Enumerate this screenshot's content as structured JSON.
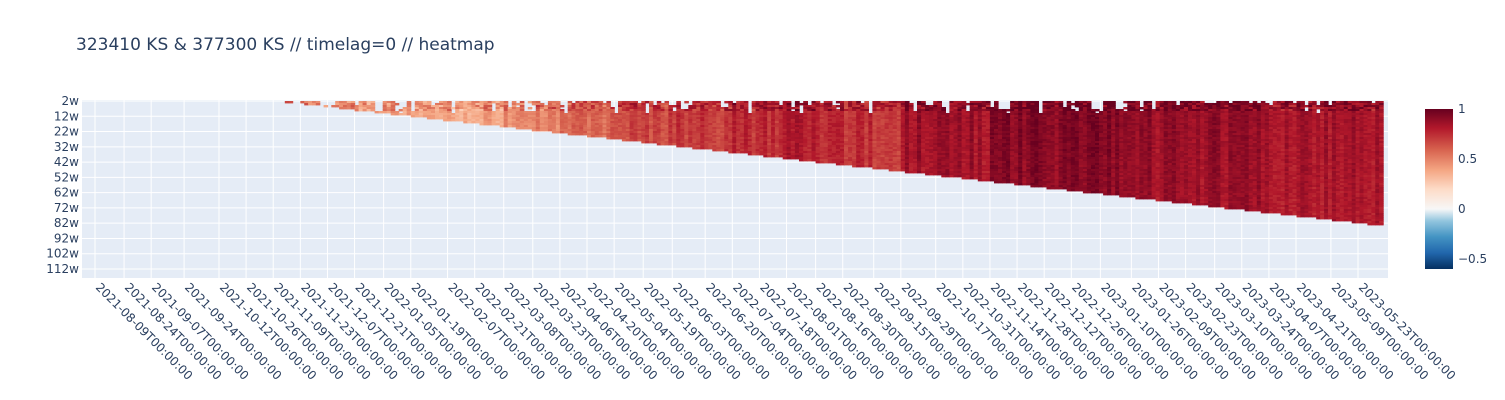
{
  "chart_data": {
    "type": "heatmap",
    "title": "323410 KS & 377300 KS // timelag=0 // heatmap",
    "xlabel": "",
    "ylabel": "",
    "x_tick_labels": [
      "2021-08-09T00:00:00",
      "2021-08-24T00:00:00",
      "2021-09-07T00:00:00",
      "2021-09-24T00:00:00",
      "2021-10-12T00:00:00",
      "2021-10-26T00:00:00",
      "2021-11-09T00:00:00",
      "2021-11-23T00:00:00",
      "2021-12-07T00:00:00",
      "2021-12-21T00:00:00",
      "2022-01-05T00:00:00",
      "2022-01-19T00:00:00",
      "2022-02-07T00:00:00",
      "2022-02-21T00:00:00",
      "2022-03-08T00:00:00",
      "2022-03-23T00:00:00",
      "2022-04-06T00:00:00",
      "2022-04-20T00:00:00",
      "2022-05-04T00:00:00",
      "2022-05-19T00:00:00",
      "2022-06-03T00:00:00",
      "2022-06-20T00:00:00",
      "2022-07-04T00:00:00",
      "2022-07-18T00:00:00",
      "2022-08-01T00:00:00",
      "2022-08-16T00:00:00",
      "2022-08-30T00:00:00",
      "2022-09-15T00:00:00",
      "2022-09-29T00:00:00",
      "2022-10-17T00:00:00",
      "2022-10-31T00:00:00",
      "2022-11-14T00:00:00",
      "2022-11-28T00:00:00",
      "2022-12-12T00:00:00",
      "2022-12-26T00:00:00",
      "2023-01-10T00:00:00",
      "2023-01-26T00:00:00",
      "2023-02-09T00:00:00",
      "2023-02-23T00:00:00",
      "2023-03-10T00:00:00",
      "2023-03-24T00:00:00",
      "2023-04-07T00:00:00",
      "2023-04-21T00:00:00",
      "2023-05-09T00:00:00",
      "2023-05-23T00:00:00"
    ],
    "y_tick_labels": [
      "2w",
      "12w",
      "22w",
      "32w",
      "42w",
      "52w",
      "62w",
      "72w",
      "82w",
      "92w",
      "102w",
      "112w"
    ],
    "y_range_weeks": [
      2,
      120
    ],
    "colorscale": "RdBu reversed",
    "colorbar": {
      "min": -0.6,
      "max": 1,
      "ticks": [
        1,
        0.5,
        0,
        -0.5
      ]
    },
    "background_color": "#e5ecf6",
    "grid": true,
    "column_blocks": [
      {
        "x_start": "2021-11-15T00:00:00",
        "x_end": "2021-11-25T00:00:00",
        "mean_correlation": 0.55
      },
      {
        "x_start": "2021-11-25T00:00:00",
        "x_end": "2021-12-21T00:00:00",
        "mean_correlation": 0.45
      },
      {
        "x_start": "2021-12-21T00:00:00",
        "x_end": "2022-01-19T00:00:00",
        "mean_correlation": 0.42
      },
      {
        "x_start": "2022-01-19T00:00:00",
        "x_end": "2022-03-08T00:00:00",
        "mean_correlation": 0.4
      },
      {
        "x_start": "2022-03-08T00:00:00",
        "x_end": "2022-04-06T00:00:00",
        "mean_correlation": 0.5
      },
      {
        "x_start": "2022-04-06T00:00:00",
        "x_end": "2022-05-04T00:00:00",
        "mean_correlation": 0.6
      },
      {
        "x_start": "2022-05-04T00:00:00",
        "x_end": "2022-06-03T00:00:00",
        "mean_correlation": 0.68
      },
      {
        "x_start": "2022-06-03T00:00:00",
        "x_end": "2022-07-04T00:00:00",
        "mean_correlation": 0.72
      },
      {
        "x_start": "2022-07-04T00:00:00",
        "x_end": "2022-08-01T00:00:00",
        "mean_correlation": 0.75
      },
      {
        "x_start": "2022-08-01T00:00:00",
        "x_end": "2022-08-16T00:00:00",
        "mean_correlation": 0.82
      },
      {
        "x_start": "2022-08-16T00:00:00",
        "x_end": "2022-09-29T00:00:00",
        "mean_correlation": 0.74
      },
      {
        "x_start": "2022-09-29T00:00:00",
        "x_end": "2022-11-14T00:00:00",
        "mean_correlation": 0.86
      },
      {
        "x_start": "2022-11-14T00:00:00",
        "x_end": "2023-01-26T00:00:00",
        "mean_correlation": 0.93
      },
      {
        "x_start": "2023-01-26T00:00:00",
        "x_end": "2023-04-07T00:00:00",
        "mean_correlation": 0.88
      },
      {
        "x_start": "2023-04-07T00:00:00",
        "x_end": "2023-06-05T00:00:00",
        "mean_correlation": 0.84
      }
    ]
  }
}
